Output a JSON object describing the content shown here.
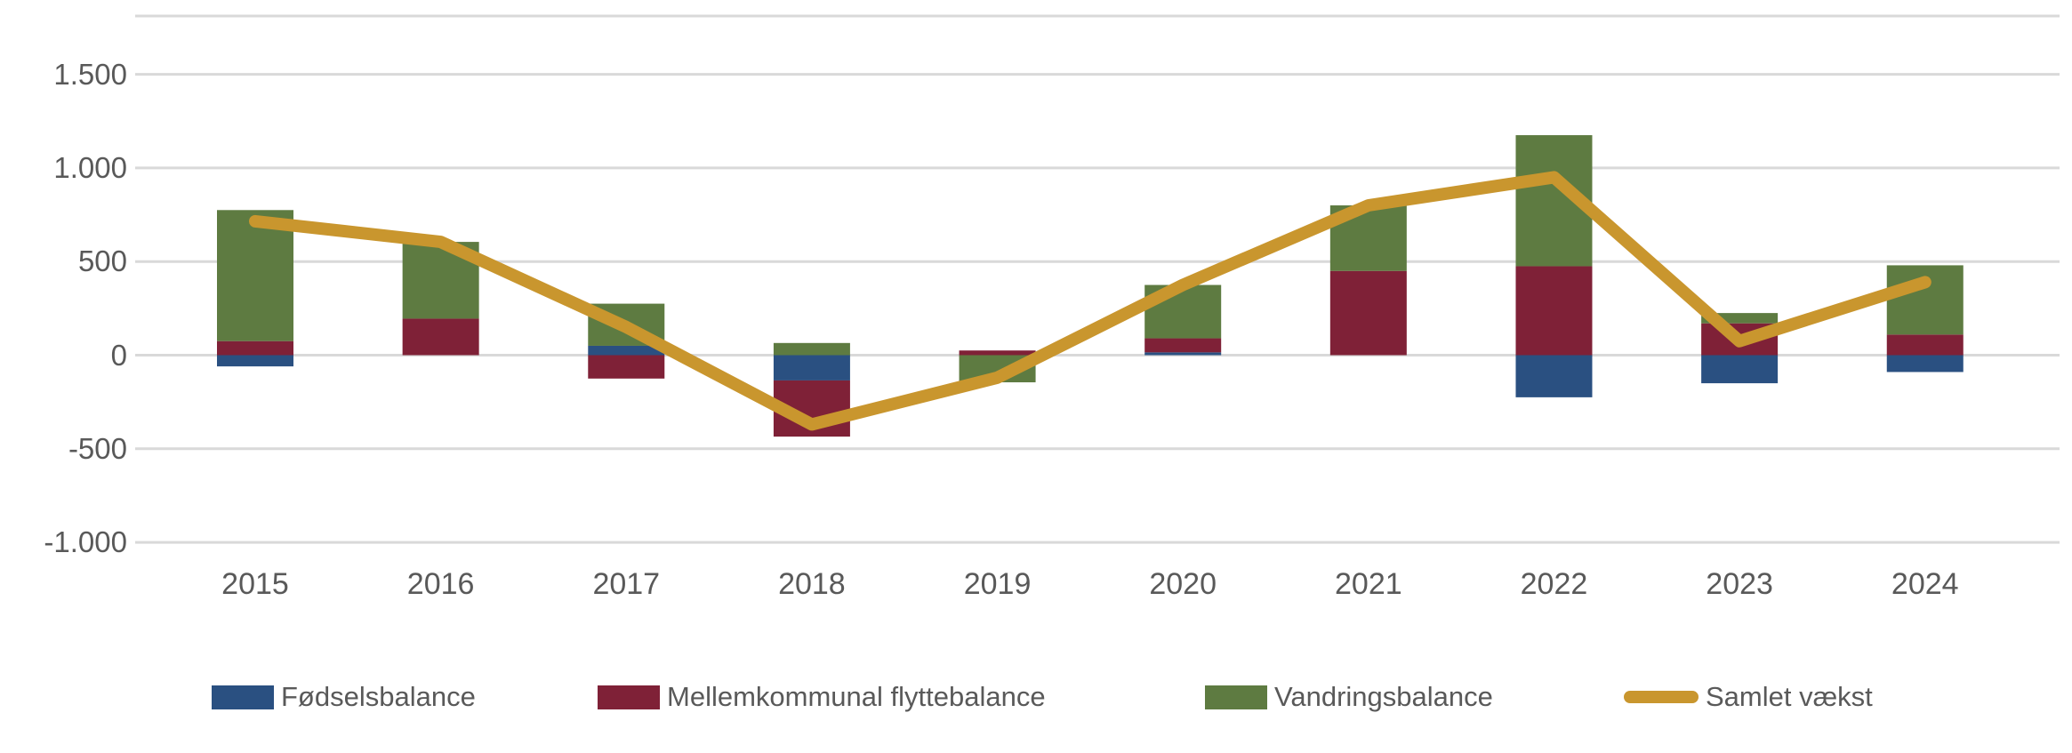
{
  "chart_data": {
    "type": "bar",
    "subtype": "stacked-bars-with-line-overlay",
    "title": "",
    "categories": [
      "2015",
      "2016",
      "2017",
      "2018",
      "2019",
      "2020",
      "2021",
      "2022",
      "2023",
      "2024"
    ],
    "series": [
      {
        "name": "Fødselsbalance",
        "type": "bar",
        "color": "#2a5081",
        "values": [
          -60,
          0,
          50,
          -135,
          0,
          15,
          0,
          -225,
          -150,
          -90
        ]
      },
      {
        "name": "Mellemkommunal flyttebalance",
        "type": "bar",
        "color": "#7f2137",
        "values": [
          75,
          195,
          -125,
          -300,
          25,
          75,
          450,
          475,
          170,
          110
        ]
      },
      {
        "name": "Vandringsbalance",
        "type": "bar",
        "color": "#5e7b41",
        "values": [
          700,
          410,
          225,
          65,
          -145,
          285,
          350,
          700,
          55,
          370
        ]
      },
      {
        "name": "Samlet vækst",
        "type": "line",
        "color": "#c9962e",
        "values": [
          715,
          605,
          150,
          -370,
          -120,
          375,
          800,
          950,
          75,
          390
        ]
      }
    ],
    "y_axis": {
      "ticks": [
        {
          "label": "1.500",
          "value": 1500
        },
        {
          "label": "1.000",
          "value": 1000
        },
        {
          "label": "500",
          "value": 500
        },
        {
          "label": "0",
          "value": 0
        },
        {
          "label": "-500",
          "value": -500
        },
        {
          "label": "-1.000",
          "value": -1000
        }
      ],
      "ylim": [
        -1000,
        1500
      ]
    },
    "xlabel": "",
    "ylabel": "",
    "grid": true,
    "legend_position": "bottom"
  },
  "colors": {
    "grid": "#d9d9d9",
    "axis_text": "#595959",
    "background": "#ffffff"
  }
}
